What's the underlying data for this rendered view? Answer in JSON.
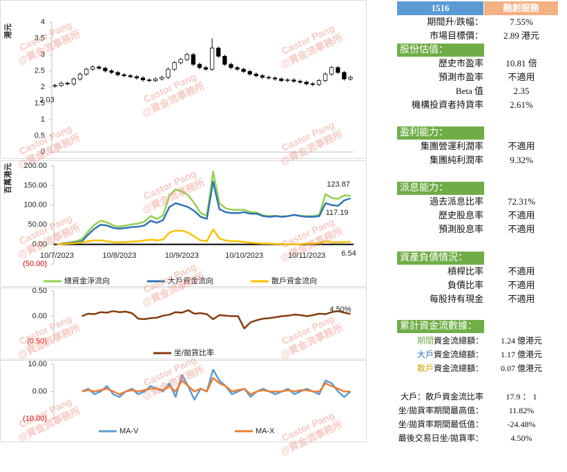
{
  "chart_data": [
    {
      "type": "candlestick",
      "y_label": "港元",
      "ylim": [
        0,
        4
      ],
      "yticks": [
        0,
        0.5,
        1,
        1.5,
        2,
        2.5,
        3,
        3.5,
        4
      ],
      "annotation": "2.03",
      "open": [
        2.03,
        2.05,
        2.12,
        2.1,
        2.25,
        2.4,
        2.55,
        2.62,
        2.58,
        2.5,
        2.45,
        2.38,
        2.35,
        2.32,
        2.28,
        2.22,
        2.2,
        2.25,
        2.3,
        2.55,
        2.75,
        2.85,
        3.0,
        2.7,
        2.6,
        2.55,
        3.2,
        2.95,
        2.7,
        2.6,
        2.55,
        2.48,
        2.4,
        2.35,
        2.3,
        2.28,
        2.25,
        2.2,
        2.22,
        2.18,
        2.15,
        2.1,
        2.08,
        2.2,
        2.4,
        2.6,
        2.45,
        2.25
      ],
      "high": [
        2.1,
        2.17,
        2.17,
        2.3,
        2.45,
        2.6,
        2.67,
        2.67,
        2.63,
        2.55,
        2.5,
        2.43,
        2.4,
        2.37,
        2.33,
        2.27,
        2.3,
        2.35,
        2.6,
        2.8,
        2.9,
        3.05,
        3.05,
        2.75,
        2.65,
        3.5,
        3.25,
        3.0,
        2.75,
        2.65,
        2.6,
        2.53,
        2.45,
        2.4,
        2.35,
        2.33,
        2.3,
        2.27,
        2.27,
        2.23,
        2.2,
        2.15,
        2.25,
        2.45,
        2.65,
        2.65,
        2.5,
        2.35
      ],
      "low": [
        1.98,
        2.0,
        2.05,
        2.05,
        2.2,
        2.35,
        2.5,
        2.53,
        2.45,
        2.4,
        2.33,
        2.3,
        2.27,
        2.23,
        2.17,
        2.15,
        2.15,
        2.2,
        2.25,
        2.5,
        2.7,
        2.8,
        2.65,
        2.55,
        2.5,
        2.5,
        2.9,
        2.65,
        2.55,
        2.5,
        2.43,
        2.35,
        2.3,
        2.25,
        2.23,
        2.2,
        2.15,
        2.15,
        2.13,
        2.1,
        2.05,
        2.03,
        2.03,
        2.15,
        2.35,
        2.4,
        2.2,
        2.2
      ],
      "close": [
        2.05,
        2.12,
        2.1,
        2.25,
        2.4,
        2.55,
        2.62,
        2.58,
        2.5,
        2.45,
        2.38,
        2.35,
        2.32,
        2.28,
        2.22,
        2.2,
        2.25,
        2.3,
        2.55,
        2.75,
        2.85,
        3.0,
        2.7,
        2.6,
        2.55,
        3.2,
        2.95,
        2.7,
        2.6,
        2.55,
        2.48,
        2.4,
        2.35,
        2.3,
        2.28,
        2.25,
        2.2,
        2.22,
        2.18,
        2.15,
        2.1,
        2.08,
        2.2,
        2.4,
        2.6,
        2.45,
        2.25,
        2.3
      ]
    },
    {
      "type": "line",
      "y_label": "百萬港元",
      "zero_line": true,
      "categories": [
        "10/7/2023",
        null,
        null,
        null,
        null,
        null,
        null,
        null,
        null,
        null,
        "10/8/2023",
        null,
        null,
        null,
        null,
        null,
        null,
        null,
        null,
        null,
        "10/9/2023",
        null,
        null,
        null,
        null,
        null,
        null,
        null,
        null,
        null,
        "10/10/2023",
        null,
        null,
        null,
        null,
        null,
        null,
        null,
        null,
        null,
        "10/11/2023",
        null,
        null,
        null,
        null,
        null,
        null,
        null
      ],
      "ylim": [
        -50,
        200
      ],
      "yticks": [
        {
          "value": 200,
          "label": "200.00"
        },
        {
          "value": 150,
          "label": "150.00"
        },
        {
          "value": 100,
          "label": "100.00"
        },
        {
          "value": 50,
          "label": "50.00"
        },
        {
          "value": 0,
          "label": "0.00"
        },
        {
          "value": -50,
          "label": "(50.00)"
        }
      ],
      "annotations": [
        "123.87",
        "117.19",
        "6.54"
      ],
      "series": [
        {
          "name": "總資金淨流向",
          "color": "#92d050",
          "values": [
            0,
            3,
            5,
            8,
            13,
            33,
            50,
            60,
            56,
            48,
            45,
            48,
            51,
            53,
            58,
            72,
            65,
            74,
            125,
            140,
            135,
            125,
            105,
            80,
            73,
            185,
            105,
            92,
            88,
            88,
            88,
            82,
            81,
            74,
            72,
            73,
            71,
            72,
            75,
            73,
            72,
            72,
            75,
            128,
            118,
            116,
            125,
            123.87
          ]
        },
        {
          "name": "大戶資金流向",
          "color": "#2e75b6",
          "values": [
            0,
            2,
            3,
            5,
            8,
            25,
            40,
            50,
            48,
            42,
            40,
            42,
            44,
            45,
            48,
            60,
            55,
            62,
            95,
            105,
            100,
            95,
            85,
            70,
            65,
            160,
            90,
            82,
            80,
            80,
            82,
            78,
            78,
            72,
            70,
            72,
            70,
            72,
            75,
            72,
            70,
            70,
            72,
            105,
            100,
            98,
            112,
            117.19
          ]
        },
        {
          "name": "散戶資金流向",
          "color": "#ffc000",
          "values": [
            0,
            1,
            2,
            3,
            5,
            8,
            10,
            10,
            8,
            6,
            5,
            6,
            7,
            8,
            10,
            12,
            10,
            12,
            30,
            35,
            35,
            30,
            20,
            10,
            8,
            38,
            15,
            10,
            8,
            8,
            6,
            4,
            3,
            2,
            2,
            1,
            1,
            0,
            0,
            1,
            2,
            2,
            3,
            8,
            6,
            5,
            6,
            6.54
          ]
        }
      ]
    },
    {
      "type": "line",
      "ylim": [
        -0.5,
        0.5
      ],
      "yticks": [
        {
          "value": 0.5,
          "label": "0.50"
        },
        {
          "value": 0,
          "label": "0.00"
        },
        {
          "value": -0.5,
          "label": "(0.50)"
        }
      ],
      "annotations": [
        "4.50%"
      ],
      "series": [
        {
          "name": "坐/拋貨比率",
          "color": "#843c0c",
          "values": [
            null,
            null,
            null,
            null,
            0.0,
            0.05,
            0.04,
            0.08,
            0.07,
            0.1,
            0.08,
            0.09,
            0.06,
            -0.05,
            -0.06,
            -0.04,
            -0.03,
            0.01,
            0.03,
            0.08,
            0.07,
            0.1182,
            0.05,
            0.06,
            0.04,
            -0.06,
            0.02,
            0.01,
            0.0,
            0.0,
            -0.2448,
            -0.12,
            -0.08,
            -0.05,
            -0.04,
            -0.02,
            0.0,
            0.01,
            0.03,
            0.02,
            0.0,
            0.02,
            0.05,
            0.04,
            0.08,
            0.1,
            0.07,
            0.045
          ]
        }
      ]
    },
    {
      "type": "line",
      "ylim": [
        -10,
        10
      ],
      "yticks": [
        {
          "value": 10,
          "label": "10.00"
        },
        {
          "value": 0,
          "label": "0.00"
        },
        {
          "value": -10,
          "label": "(10.00)"
        }
      ],
      "series": [
        {
          "name": "MA-V",
          "color": "#5b9bd5",
          "values": [
            null,
            null,
            null,
            null,
            0,
            1,
            -1,
            0,
            2,
            -1,
            -2,
            0,
            1,
            -1,
            0,
            2,
            1,
            0,
            3,
            -2,
            6,
            2,
            -3,
            1,
            0,
            8,
            4,
            2,
            -1,
            0,
            1,
            -2,
            0,
            1,
            0,
            -1,
            0,
            1,
            -1,
            0,
            1,
            0,
            -1,
            4,
            3,
            0,
            -2,
            0
          ]
        },
        {
          "name": "MA-X",
          "color": "#ed7d31",
          "values": [
            null,
            null,
            null,
            null,
            0,
            0.5,
            0,
            0.5,
            1,
            0,
            -1,
            0,
            0.5,
            0,
            0.5,
            1,
            1,
            0.5,
            2,
            0,
            4,
            2,
            0,
            1,
            0,
            5,
            3,
            2,
            0,
            0.5,
            1,
            -1,
            0,
            0.5,
            0,
            0,
            0,
            0.5,
            0,
            0.5,
            0.5,
            0,
            0,
            3,
            2,
            1,
            0,
            0
          ]
        }
      ]
    }
  ],
  "watermark": [
    "Castor Pang",
    "@資金流事務所"
  ],
  "panel": {
    "header": {
      "code": "1516",
      "name": "融創服務"
    },
    "summary": [
      [
        "期間升/跌幅：",
        "7.55%"
      ],
      [
        "市場目標價：",
        "2.89 港元"
      ]
    ],
    "sections": [
      {
        "title": "股份估值：",
        "rows": [
          [
            "歷史市盈率",
            "10.81 倍"
          ],
          [
            "預測市盈率",
            "不適用"
          ],
          [
            "Beta 值",
            "2.35"
          ],
          [
            "機構投資者持貨率",
            "2.61%"
          ]
        ]
      },
      {
        "title": "盈利能力：",
        "rows": [
          [
            "集團營運利潤率",
            "不適用"
          ],
          [
            "集團純利潤率",
            "9.32%"
          ]
        ]
      },
      {
        "title": "派息能力：",
        "rows": [
          [
            "過去派息比率",
            "72.31%"
          ],
          [
            "歷史股息率",
            "不適用"
          ],
          [
            "預測股息率",
            "不適用"
          ]
        ]
      },
      {
        "title": "資產負債情況：",
        "rows": [
          [
            "槓桿比率",
            "不適用"
          ],
          [
            "負債比率",
            "不適用"
          ],
          [
            "每股持有現金",
            "不適用"
          ]
        ]
      }
    ],
    "flow": {
      "title": "累計資金流數據：",
      "rows": [
        [
          "期間",
          "資金流總額：",
          "1.24 億港元"
        ],
        [
          "大戶",
          "資金流總額：",
          "1.17 億港元"
        ],
        [
          "散戶",
          "資金流總額：",
          "0.07 億港元"
        ]
      ]
    },
    "footer": [
      [
        "大戶：散戶資金流比率",
        "17.9 ： 1"
      ],
      [
        "坐/拋貨率期間最高值：",
        "11.82%"
      ],
      [
        "坐/拋貨率期間最低值：",
        "-24.48%"
      ],
      [
        "最後交易日坐/拋貨率：",
        "4.50%"
      ]
    ]
  }
}
